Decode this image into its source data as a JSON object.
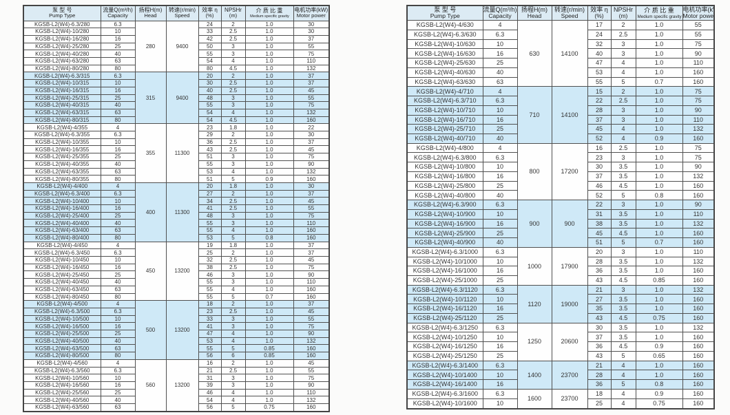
{
  "header": {
    "pump_zh": "泵 型 号",
    "pump_en": "Pump Type",
    "capacity_zh": "流量Q(m³/h)",
    "capacity_en": "Capacity",
    "head_zh": "扬程H(m)",
    "head_en": "Head",
    "speed_zh": "转速(r/min)",
    "speed_en": "Speed",
    "eff_zh": "效率 η",
    "eff_en": "(%)",
    "npshr_zh": "NPSHr",
    "npshr_en": "(m)",
    "gravity_zh": "介 质 比 重",
    "gravity_en": "Medium specific gravity",
    "power_zh": "电机功率(kW)",
    "power_en": "Motor power"
  },
  "colors": {
    "band_blue": "#cfe9f7",
    "header_bg": "#dcebf4",
    "border": "#4f4f4f"
  },
  "left_table": {
    "groups": [
      {
        "head": "280",
        "speed": "9400",
        "shade": false,
        "rows": [
          [
            "KGSB-L2(W4)-6.3/280",
            "6.3",
            "24",
            "2",
            "1.0",
            "30"
          ],
          [
            "KGSB-L2(W4)-10/280",
            "10",
            "33",
            "2.5",
            "1.0",
            "30"
          ],
          [
            "KGSB-L2(W4)-16/280",
            "16",
            "42",
            "2.5",
            "1.0",
            "37"
          ],
          [
            "KGSB-L2(W4)-25/280",
            "25",
            "50",
            "3",
            "1.0",
            "55"
          ],
          [
            "KGSB-L2(W4)-40/280",
            "40",
            "55",
            "3",
            "1.0",
            "75"
          ],
          [
            "KGSB-L2(W4)-63/280",
            "63",
            "54",
            "4",
            "1.0",
            "110"
          ],
          [
            "KGSB-L2(W4)-80/280",
            "80",
            "80",
            "4.5",
            "1.0",
            "132"
          ]
        ]
      },
      {
        "head": "315",
        "speed": "9400",
        "shade": true,
        "rows": [
          [
            "KGSB-L2(W4)-6.3/315",
            "6.3",
            "20",
            "2",
            "1.0",
            "37"
          ],
          [
            "KGSB-L2(W4)-10/315",
            "10",
            "30",
            "2.5",
            "1.0",
            "37"
          ],
          [
            "KGSB-L2(W4)-16/315",
            "16",
            "40",
            "2.5",
            "1.0",
            "45"
          ],
          [
            "KGSB-L2(W4)-25/315",
            "25",
            "48",
            "3",
            "1.0",
            "55"
          ],
          [
            "KGSB-L2(W4)-40/315",
            "40",
            "55",
            "3",
            "1.0",
            "75"
          ],
          [
            "KGSB-L2(W4)-63/315",
            "63",
            "54",
            "4",
            "1.0",
            "132"
          ],
          [
            "KGSB-L2(W4)-80/315",
            "80",
            "54",
            "4.5",
            "1.0",
            "160"
          ]
        ]
      },
      {
        "head": "355",
        "speed": "11300",
        "shade": false,
        "rows": [
          [
            "KGSB-L2(W4)-4/355",
            "4",
            "23",
            "1.8",
            "1.0",
            "22"
          ],
          [
            "KGSB-L2(W4)-6.3/355",
            "6.3",
            "29",
            "2",
            "1.0",
            "30"
          ],
          [
            "KGSB-L2(W4)-10/355",
            "10",
            "36",
            "2.5",
            "1.0",
            "37"
          ],
          [
            "KGSB-L2(W4)-16/355",
            "16",
            "43",
            "2.5",
            "1.0",
            "45"
          ],
          [
            "KGSB-L2(W4)-25/355",
            "25",
            "51",
            "3",
            "1.0",
            "75"
          ],
          [
            "KGSB-L2(W4)-40/355",
            "40",
            "55",
            "3",
            "1.0",
            "90"
          ],
          [
            "KGSB-L2(W4)-63/355",
            "63",
            "53",
            "4",
            "1.0",
            "132"
          ],
          [
            "KGSB-L2(W4)-80/355",
            "80",
            "51",
            "5",
            "0.9",
            "160"
          ]
        ]
      },
      {
        "head": "400",
        "speed": "11300",
        "shade": true,
        "rows": [
          [
            "KGSB-L2(W4)-4/400",
            "4",
            "20",
            "1.8",
            "1.0",
            "30"
          ],
          [
            "KGSB-L2(W4)-6.3/400",
            "6.3",
            "27",
            "2",
            "1.0",
            "37"
          ],
          [
            "KGSB-L2(W4)-10/400",
            "10",
            "34",
            "2.5",
            "1.0",
            "45"
          ],
          [
            "KGSB-L2(W4)-16/400",
            "16",
            "41",
            "2.5",
            "1.0",
            "55"
          ],
          [
            "KGSB-L2(W4)-25/400",
            "25",
            "48",
            "3",
            "1.0",
            "75"
          ],
          [
            "KGSB-L2(W4)-40/400",
            "40",
            "55",
            "3",
            "1.0",
            "110"
          ],
          [
            "KGSB-L2(W4)-63/400",
            "63",
            "55",
            "4",
            "1.0",
            "160"
          ],
          [
            "KGSB-L2(W4)-80/400",
            "80",
            "53",
            "5",
            "0.8",
            "160"
          ]
        ]
      },
      {
        "head": "450",
        "speed": "13200",
        "shade": false,
        "rows": [
          [
            "KGSB-L2(W4)-4/450",
            "4",
            "19",
            "1.8",
            "1.0",
            "37"
          ],
          [
            "KGSB-L2(W4)-6.3/450",
            "6.3",
            "25",
            "2",
            "1.0",
            "37"
          ],
          [
            "KGSB-L2(W4)-10/450",
            "10",
            "32",
            "2.5",
            "1.0",
            "45"
          ],
          [
            "KGSB-L2(W4)-16/450",
            "16",
            "38",
            "2.5",
            "1.0",
            "75"
          ],
          [
            "KGSB-L2(W4)-25/450",
            "25",
            "46",
            "3",
            "1.0",
            "90"
          ],
          [
            "KGSB-L2(W4)-40/450",
            "40",
            "55",
            "3",
            "1.0",
            "110"
          ],
          [
            "KGSB-L2(W4)-63/450",
            "63",
            "55",
            "4",
            "1.0",
            "160"
          ],
          [
            "KGSB-L2(W4)-80/450",
            "80",
            "55",
            "5",
            "0.7",
            "160"
          ]
        ]
      },
      {
        "head": "500",
        "speed": "13200",
        "shade": true,
        "rows": [
          [
            "KGSB-L2(W4)-4/500",
            "4",
            "18",
            "2",
            "1.0",
            "37"
          ],
          [
            "KGSB-L2(W4)-6.3/500",
            "6.3",
            "23",
            "2.5",
            "1.0",
            "45"
          ],
          [
            "KGSB-L2(W4)-10/500",
            "10",
            "33",
            "3",
            "1.0",
            "55"
          ],
          [
            "KGSB-L2(W4)-16/500",
            "16",
            "41",
            "3",
            "1.0",
            "75"
          ],
          [
            "KGSB-L2(W4)-25/500",
            "25",
            "47",
            "4",
            "1.0",
            "90"
          ],
          [
            "KGSB-L2(W4)-40/500",
            "40",
            "53",
            "4",
            "1.0",
            "132"
          ],
          [
            "KGSB-L2(W4)-63/500",
            "63",
            "55",
            "5",
            "0.85",
            "160"
          ],
          [
            "KGSB-L2(W4)-80/500",
            "80",
            "56",
            "6",
            "0.85",
            "160"
          ]
        ]
      },
      {
        "head": "560",
        "speed": "13200",
        "shade": false,
        "rows": [
          [
            "KGSB-L2(W4)-4/560",
            "4",
            "16",
            "2",
            "1.0",
            "45"
          ],
          [
            "KGSB-L2(W4)-6.3/560",
            "6.3",
            "21",
            "2.5",
            "1.0",
            "55"
          ],
          [
            "KGSB-L2(W4)-10/560",
            "10",
            "31",
            "3",
            "1.0",
            "75"
          ],
          [
            "KGSB-L2(W4)-16/560",
            "16",
            "39",
            "3",
            "1.0",
            "90"
          ],
          [
            "KGSB-L2(W4)-25/560",
            "25",
            "46",
            "4",
            "1.0",
            "110"
          ],
          [
            "KGSB-L2(W4)-40/560",
            "40",
            "54",
            "4",
            "1.0",
            "132"
          ],
          [
            "KGSB-L2(W4)-63/560",
            "63",
            "56",
            "5",
            "0.75",
            "160"
          ]
        ]
      }
    ]
  },
  "right_table": {
    "groups": [
      {
        "head": "630",
        "speed": "14100",
        "shade": false,
        "rows": [
          [
            "KGSB-L2(W4)-4/630",
            "4",
            "17",
            "2",
            "1.0",
            "55"
          ],
          [
            "KGSB-L2(W4)-6.3/630",
            "6.3",
            "24",
            "2.5",
            "1.0",
            "55"
          ],
          [
            "KGSB-L2(W4)-10/630",
            "10",
            "32",
            "3",
            "1.0",
            "75"
          ],
          [
            "KGSB-L2(W4)-16/630",
            "16",
            "40",
            "3",
            "1.0",
            "90"
          ],
          [
            "KGSB-L2(W4)-25/630",
            "25",
            "47",
            "4",
            "1.0",
            "110"
          ],
          [
            "KGSB-L2(W4)-40/630",
            "40",
            "53",
            "4",
            "1.0",
            "160"
          ],
          [
            "KGSB-L2(W4)-63/630",
            "63",
            "55",
            "5",
            "0.7",
            "160"
          ]
        ]
      },
      {
        "head": "710",
        "speed": "14100",
        "shade": true,
        "rows": [
          [
            "KGSB-L2(W4)-4/710",
            "4",
            "15",
            "2",
            "1.0",
            "75"
          ],
          [
            "KGSB-L2(W4)-6.3/710",
            "6.3",
            "22",
            "2.5",
            "1.0",
            "75"
          ],
          [
            "KGSB-L2(W4)-10/710",
            "10",
            "28",
            "3",
            "1.0",
            "90"
          ],
          [
            "KGSB-L2(W4)-16/710",
            "16",
            "37",
            "3",
            "1.0",
            "110"
          ],
          [
            "KGSB-L2(W4)-25/710",
            "25",
            "45",
            "4",
            "1.0",
            "132"
          ],
          [
            "KGSB-L2(W4)-40/710",
            "40",
            "52",
            "4",
            "0.9",
            "160"
          ]
        ]
      },
      {
        "head": "800",
        "speed": "17200",
        "shade": false,
        "rows": [
          [
            "KGSB-L2(W4)-4/800",
            "4",
            "16",
            "2.5",
            "1.0",
            "75"
          ],
          [
            "KGSB-L2(W4)-6.3/800",
            "6.3",
            "23",
            "3",
            "1.0",
            "75"
          ],
          [
            "KGSB-L2(W4)-10/800",
            "10",
            "30",
            "3.5",
            "1.0",
            "90"
          ],
          [
            "KGSB-L2(W4)-16/800",
            "16",
            "37",
            "3.5",
            "1.0",
            "132"
          ],
          [
            "KGSB-L2(W4)-25/800",
            "25",
            "46",
            "4.5",
            "1.0",
            "160"
          ],
          [
            "KGSB-L2(W4)-40/800",
            "40",
            "52",
            "5",
            "0.8",
            "160"
          ]
        ]
      },
      {
        "head": "900",
        "speed": "900",
        "shade": true,
        "rows": [
          [
            "KGSB-L2(W4)-6.3/900",
            "6.3",
            "22",
            "3",
            "1.0",
            "90"
          ],
          [
            "KGSB-L2(W4)-10/900",
            "10",
            "31",
            "3.5",
            "1.0",
            "110"
          ],
          [
            "KGSB-L2(W4)-16/900",
            "16",
            "38",
            "3.5",
            "1.0",
            "132"
          ],
          [
            "KGSB-L2(W4)-25/900",
            "25",
            "45",
            "4.5",
            "1.0",
            "160"
          ],
          [
            "KGSB-L2(W4)-40/900",
            "40",
            "51",
            "5",
            "0.7",
            "160"
          ]
        ]
      },
      {
        "head": "1000",
        "speed": "17900",
        "shade": false,
        "rows": [
          [
            "KGSB-L2(W4)-6.3/1000",
            "6.3",
            "20",
            "3",
            "1.0",
            "110"
          ],
          [
            "KGSB-L2(W4)-10/1000",
            "10",
            "28",
            "3.5",
            "1.0",
            "132"
          ],
          [
            "KGSB-L2(W4)-16/1000",
            "16",
            "36",
            "3.5",
            "1.0",
            "160"
          ],
          [
            "KGSB-L2(W4)-25/1000",
            "25",
            "43",
            "4.5",
            "0.85",
            "160"
          ]
        ]
      },
      {
        "head": "1120",
        "speed": "19000",
        "shade": true,
        "rows": [
          [
            "KGSB-L2(W4)-6.3/1120",
            "6.3",
            "21",
            "3",
            "1.0",
            "132"
          ],
          [
            "KGSB-L2(W4)-10/1120",
            "10",
            "27",
            "3.5",
            "1.0",
            "160"
          ],
          [
            "KGSB-L2(W4)-16/1120",
            "16",
            "35",
            "3.5",
            "1.0",
            "160"
          ],
          [
            "KGSB-L2(W4)-25/1120",
            "25",
            "43",
            "4.5",
            "0.75",
            "160"
          ]
        ]
      },
      {
        "head": "1250",
        "speed": "20600",
        "shade": false,
        "rows": [
          [
            "KGSB-L2(W4)-6.3/1250",
            "6.3",
            "30",
            "3.5",
            "1.0",
            "132"
          ],
          [
            "KGSB-L2(W4)-10/1250",
            "10",
            "37",
            "3.5",
            "1.0",
            "160"
          ],
          [
            "KGSB-L2(W4)-16/1250",
            "16",
            "36",
            "4.5",
            "0.9",
            "160"
          ],
          [
            "KGSB-L2(W4)-25/1250",
            "25",
            "43",
            "5",
            "0.65",
            "160"
          ]
        ]
      },
      {
        "head": "1400",
        "speed": "23700",
        "shade": true,
        "rows": [
          [
            "KGSB-L2(W4)-6.3/1400",
            "6.3",
            "21",
            "4",
            "1.0",
            "160"
          ],
          [
            "KGSB-L2(W4)-10/1400",
            "10",
            "28",
            "4",
            "1.0",
            "160"
          ],
          [
            "KGSB-L2(W4)-16/1400",
            "16",
            "36",
            "5",
            "0.8",
            "160"
          ]
        ]
      },
      {
        "head": "1600",
        "speed": "23700",
        "shade": false,
        "rows": [
          [
            "KGSB-L2(W4)-6.3/1600",
            "6.3",
            "18",
            "4",
            "0.9",
            "160"
          ],
          [
            "KGSB-L2(W4)-10/1600",
            "10",
            "25",
            "4",
            "0.75",
            "160"
          ]
        ]
      }
    ]
  }
}
